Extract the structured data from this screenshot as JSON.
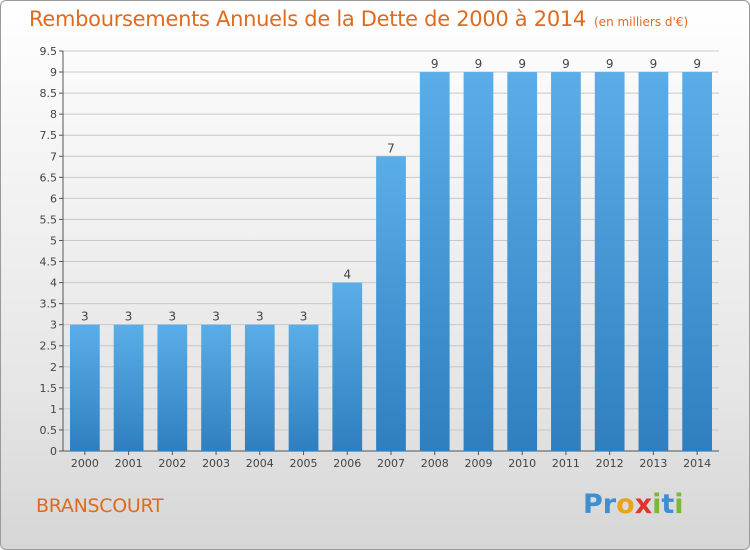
{
  "header": {
    "title": "Remboursements Annuels de la Dette de 2000 à 2014",
    "subtitle": "(en milliers d'€)"
  },
  "footer": {
    "town": "BRANSCOURT",
    "logo_letters": [
      "P",
      "r",
      "o",
      "x",
      "i",
      "t",
      "i"
    ]
  },
  "colors": {
    "title": "#e06a1e",
    "bar_light": "#5aaee8",
    "bar_dark": "#2f7fc0",
    "logo": [
      "#3c8fd0",
      "#3c8fd0",
      "#e8a51c",
      "#e0342c",
      "#7bb83a",
      "#3c8fd0",
      "#7bb83a"
    ]
  },
  "chart_data": {
    "type": "bar",
    "categories": [
      "2000",
      "2001",
      "2002",
      "2003",
      "2004",
      "2005",
      "2006",
      "2007",
      "2008",
      "2009",
      "2010",
      "2011",
      "2012",
      "2013",
      "2014"
    ],
    "values": [
      3,
      3,
      3,
      3,
      3,
      3,
      4,
      7,
      9,
      9,
      9,
      9,
      9,
      9,
      9
    ],
    "data_labels": [
      "3",
      "3",
      "3",
      "3",
      "3",
      "3",
      "4",
      "7",
      "9",
      "9",
      "9",
      "9",
      "9",
      "9",
      "9"
    ],
    "y_ticks": [
      "0",
      "0.5",
      "1",
      "1.5",
      "2",
      "2.5",
      "3",
      "3.5",
      "4",
      "4.5",
      "5",
      "5.5",
      "6",
      "6.5",
      "7",
      "7.5",
      "8",
      "8.5",
      "9",
      "9.5"
    ],
    "ylim": [
      0,
      9.5
    ],
    "grid": true
  }
}
